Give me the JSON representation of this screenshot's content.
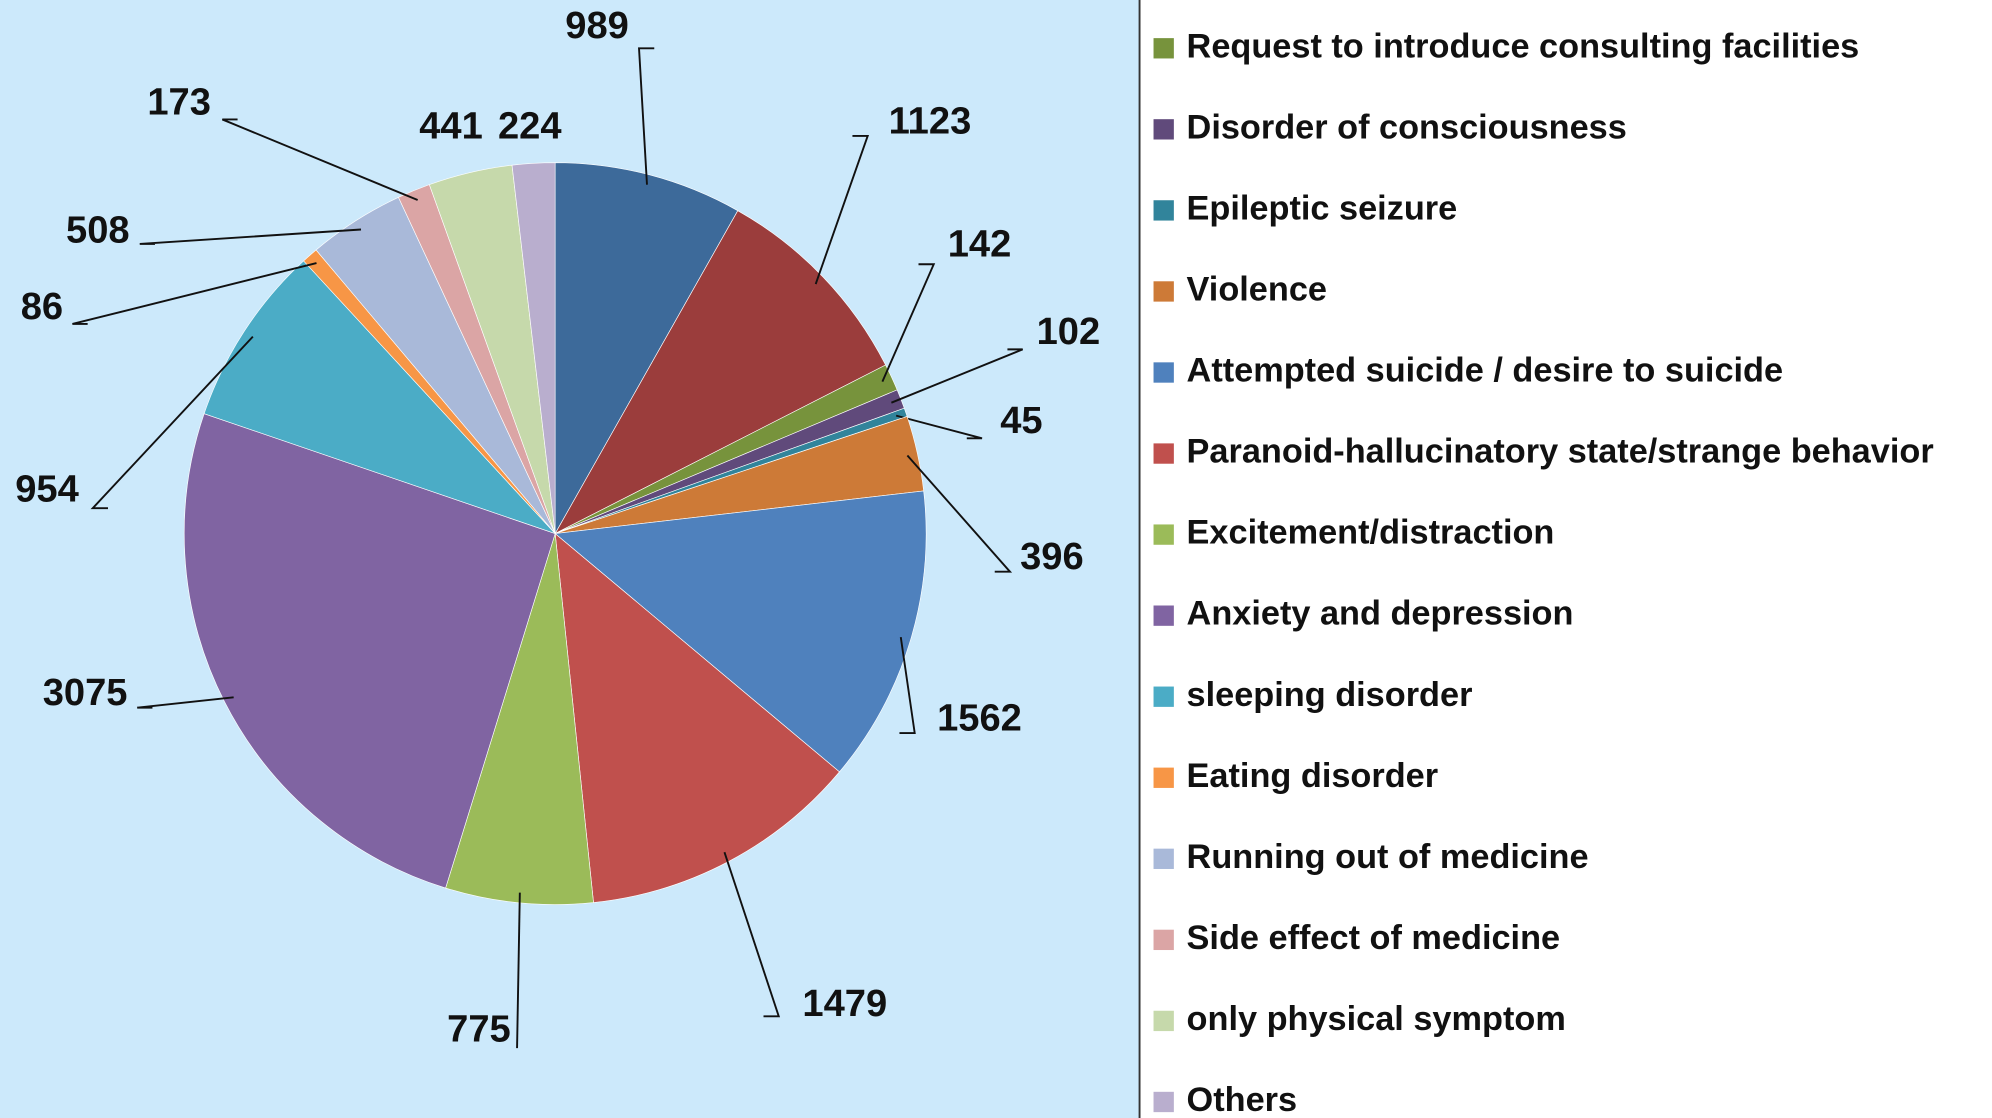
{
  "chart_data": {
    "type": "pie",
    "categories": [
      null,
      null,
      "Request to introduce consulting facilities",
      "Disorder of consciousness",
      "Epileptic seizure",
      "Violence",
      "Attempted suicide / desire to suicide",
      "Paranoid-hallucinatory state/strange behavior",
      "Excitement/distraction",
      "Anxiety and depression",
      "sleeping disorder",
      "Eating disorder",
      "Running out of medicine",
      "Side effect of medicine",
      "only physical symptom",
      "Others"
    ],
    "values": [
      989,
      1123,
      142,
      102,
      45,
      396,
      1562,
      1479,
      775,
      3075,
      954,
      86,
      508,
      173,
      441,
      224
    ],
    "colors": [
      "#3d6a9a",
      "#9b3d3c",
      "#77933c",
      "#604a7b",
      "#31849b",
      "#cd7a37",
      "#4f81bd",
      "#c0504d",
      "#9bbb59",
      "#8064a2",
      "#4bacc6",
      "#f79646",
      "#a9b9d9",
      "#dba5a5",
      "#c6d9ab",
      "#b9aece"
    ],
    "legend": "right"
  }
}
